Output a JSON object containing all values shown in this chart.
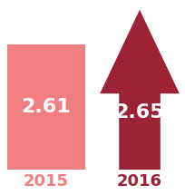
{
  "value_2015": 2.61,
  "value_2016": 2.65,
  "label_2015": "2015",
  "label_2016": "2016",
  "text_2015": "2.61",
  "text_2016": "2.65",
  "color_2015": "#F08080",
  "color_2016": "#9B2335",
  "text_color": "#FFFFFF",
  "year_label_color_2015": "#F08080",
  "year_label_color_2016": "#9B2335",
  "bg_color": "#FFFFFF",
  "font_size_value": 16,
  "font_size_year": 13
}
